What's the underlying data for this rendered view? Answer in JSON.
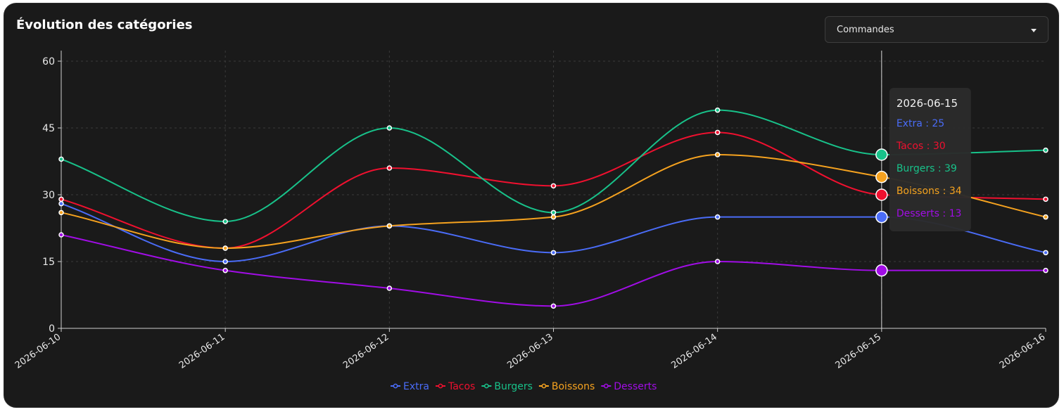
{
  "card": {
    "title": "Évolution des catégories",
    "metric_select": {
      "value": "Commandes",
      "icon": "caret-down-icon"
    }
  },
  "colors": {
    "background": "#1a1a1a",
    "Extra": "#4a6cf7",
    "Tacos": "#f0102f",
    "Burgers": "#18c28a",
    "Boissons": "#f5a21f",
    "Desserts": "#a10de6"
  },
  "chart_data": {
    "type": "line",
    "title": "Évolution des catégories",
    "xlabel": "",
    "ylabel": "",
    "x": [
      "2026-06-10",
      "2026-06-11",
      "2026-06-12",
      "2026-06-13",
      "2026-06-14",
      "2026-06-15",
      "2026-06-16"
    ],
    "ylim": [
      0,
      60
    ],
    "yticks": [
      0,
      15,
      30,
      45,
      60
    ],
    "grid": true,
    "legend": "bottom",
    "series": [
      {
        "name": "Extra",
        "values": [
          28,
          15,
          23,
          17,
          25,
          25,
          17
        ]
      },
      {
        "name": "Tacos",
        "values": [
          29,
          18,
          36,
          32,
          44,
          30,
          29
        ]
      },
      {
        "name": "Burgers",
        "values": [
          38,
          24,
          45,
          26,
          49,
          39,
          40
        ]
      },
      {
        "name": "Boissons",
        "values": [
          26,
          18,
          23,
          25,
          39,
          34,
          25
        ]
      },
      {
        "name": "Desserts",
        "values": [
          21,
          13,
          9,
          5,
          15,
          13,
          13
        ]
      }
    ],
    "tooltip": {
      "x": "2026-06-15",
      "items": [
        {
          "text": "Extra : 25"
        },
        {
          "text": "Tacos : 30"
        },
        {
          "text": "Burgers : 39"
        },
        {
          "text": "Boissons : 34"
        },
        {
          "text": "Desserts : 13"
        }
      ]
    }
  }
}
